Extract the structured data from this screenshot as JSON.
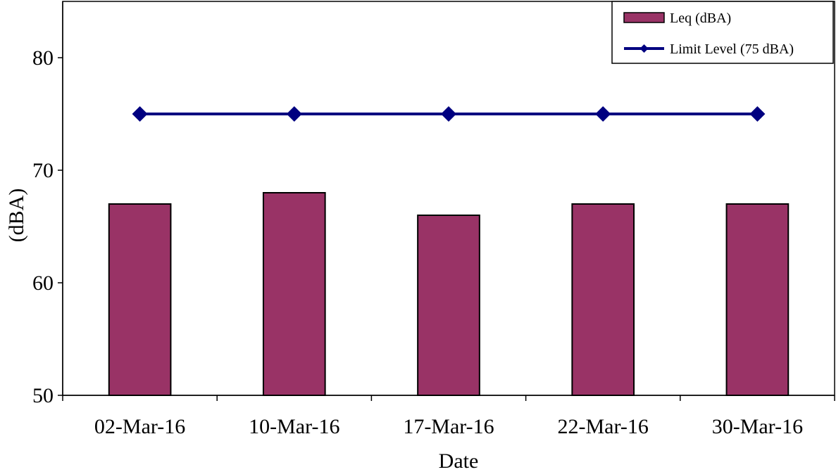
{
  "chart_data": {
    "type": "bar",
    "categories": [
      "02-Mar-16",
      "10-Mar-16",
      "17-Mar-16",
      "22-Mar-16",
      "30-Mar-16"
    ],
    "series": [
      {
        "name": "Leq (dBA)",
        "type": "bar",
        "values": [
          67,
          68,
          66,
          67,
          67
        ],
        "color": "#993366"
      },
      {
        "name": "Limit Level (75 dBA)",
        "type": "line",
        "marker": "diamond",
        "values": [
          75,
          75,
          75,
          75,
          75
        ],
        "color": "#000080"
      }
    ],
    "title": "",
    "xlabel": "Date",
    "ylabel": "(dBA)",
    "ylim": [
      50,
      85
    ],
    "yticks": [
      50,
      60,
      70,
      80
    ],
    "grid": false,
    "legend_position": "top-right"
  }
}
